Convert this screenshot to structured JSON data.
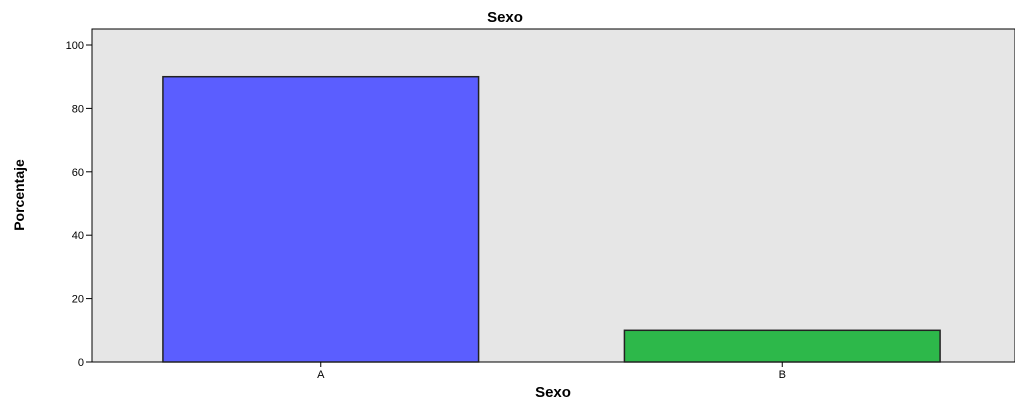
{
  "chart_data": {
    "type": "bar",
    "title": "Sexo",
    "xlabel": "Sexo",
    "ylabel": "Porcentaje",
    "categories": [
      "A",
      "B"
    ],
    "values": [
      90,
      10
    ],
    "ylim": [
      0,
      100
    ],
    "yticks": [
      "0",
      "20",
      "40",
      "60",
      "80",
      "100"
    ],
    "grid": false,
    "colors": [
      "#5b5eff",
      "#2db84a"
    ],
    "plot_background": "#e6e6e6"
  }
}
